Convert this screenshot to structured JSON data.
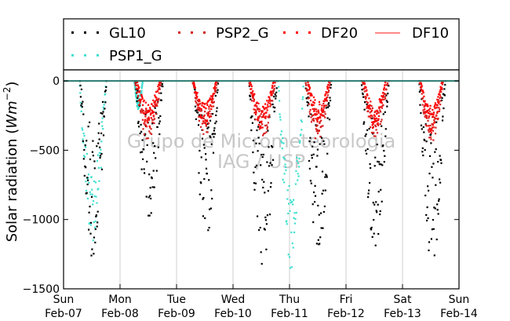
{
  "chart_data": {
    "type": "scatter",
    "ylabel": "Solar radiation ($Wm^{-2}$)",
    "ylabel_display": [
      "Solar radiation (",
      "Wm",
      "−2",
      ")"
    ],
    "ylim": [
      -1500,
      80
    ],
    "yticks": [
      0,
      -500,
      -1000,
      -1500
    ],
    "ytick_labels": [
      "0",
      "−500",
      "−1000",
      "−1500"
    ],
    "xlim": [
      0,
      7
    ],
    "xticks": [
      {
        "x": 0,
        "day": "Sun",
        "date": "Feb-07"
      },
      {
        "x": 1,
        "day": "Mon",
        "date": "Feb-08"
      },
      {
        "x": 2,
        "day": "Tue",
        "date": "Feb-09"
      },
      {
        "x": 3,
        "day": "Wed",
        "date": "Feb-10"
      },
      {
        "x": 4,
        "day": "Thu",
        "date": "Feb-11"
      },
      {
        "x": 5,
        "day": "Fri",
        "date": "Feb-12"
      },
      {
        "x": 6,
        "day": "Sat",
        "date": "Feb-13"
      },
      {
        "x": 7,
        "day": "Sun",
        "date": "Feb-14"
      }
    ],
    "grid": "vertical",
    "legend": {
      "placement": "top",
      "entries": [
        {
          "name": "GL10",
          "marker": "dot",
          "color": "#000000"
        },
        {
          "name": "PSP2_G",
          "marker": "dot",
          "color": "#d62020"
        },
        {
          "name": "DF20",
          "marker": "dot",
          "color": "#ff0000"
        },
        {
          "name": "DF10",
          "marker": "line",
          "color": "#ff6060"
        },
        {
          "name": "PSP1_G",
          "marker": "dot",
          "color": "#40e0d0"
        }
      ]
    },
    "watermark": [
      "Grupo de Micrometeorologia",
      "IAG / USP"
    ],
    "series": [
      {
        "name": "GL10",
        "color": "#000000",
        "days": [
          {
            "x0": 0.29,
            "x1": 0.76,
            "trough": -1220
          },
          {
            "x0": 1.27,
            "x1": 1.76,
            "trough": -900
          },
          {
            "x0": 2.3,
            "x1": 2.74,
            "trough": -1100
          },
          {
            "x0": 3.28,
            "x1": 3.78,
            "trough": -1250
          },
          {
            "x0": 4.28,
            "x1": 4.74,
            "trough": -1230
          },
          {
            "x0": 5.27,
            "x1": 5.76,
            "trough": -1110
          },
          {
            "x0": 6.29,
            "x1": 6.76,
            "trough": -1240
          }
        ]
      },
      {
        "name": "PSP2_G",
        "color": "#d62020",
        "days": [
          {
            "x0": 1.26,
            "x1": 1.73,
            "trough": -420
          },
          {
            "x0": 2.28,
            "x1": 2.72,
            "trough": -380
          },
          {
            "x0": 3.28,
            "x1": 3.75,
            "trough": -400
          },
          {
            "x0": 4.28,
            "x1": 4.72,
            "trough": -420
          },
          {
            "x0": 5.29,
            "x1": 5.74,
            "trough": -400
          },
          {
            "x0": 6.3,
            "x1": 6.72,
            "trough": -430
          }
        ]
      },
      {
        "name": "DF20",
        "color": "#ff0000",
        "days": [
          {
            "x0": 1.3,
            "x1": 1.7,
            "trough": -330
          },
          {
            "x0": 2.3,
            "x1": 2.7,
            "trough": -320
          },
          {
            "x0": 3.3,
            "x1": 3.72,
            "trough": -330
          },
          {
            "x0": 4.32,
            "x1": 4.7,
            "trough": -300
          },
          {
            "x0": 5.32,
            "x1": 5.7,
            "trough": -340
          },
          {
            "x0": 6.32,
            "x1": 6.7,
            "trough": -360
          }
        ]
      },
      {
        "name": "PSP1_G",
        "color": "#40e0d0",
        "days": [
          {
            "x0": 0.28,
            "x1": 0.75,
            "trough": -1110
          },
          {
            "x0": 1.25,
            "x1": 1.4,
            "trough": -200
          },
          {
            "x0": 3.8,
            "x1": 4.25,
            "trough": -1300
          }
        ]
      }
    ]
  }
}
